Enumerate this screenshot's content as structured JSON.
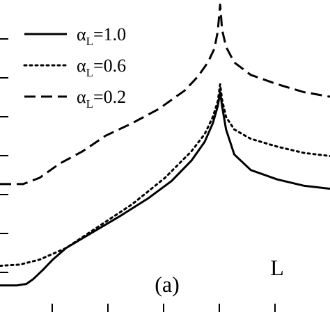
{
  "chart_data": {
    "type": "line",
    "title": "",
    "xlabel": "",
    "ylabel": "",
    "xlim": [
      0,
      1
    ],
    "ylim": [
      0,
      1
    ],
    "grid": false,
    "legend": "top-left",
    "panel_label": "(a)",
    "region_label": "L",
    "series": [
      {
        "name": "α_L=1.0",
        "legend_main": "α",
        "legend_sub": "L",
        "legend_value": "=1.0",
        "style": "solid",
        "x": [
          0.0,
          0.05,
          0.08,
          0.1,
          0.13,
          0.16,
          0.2,
          0.28,
          0.36,
          0.45,
          0.52,
          0.58,
          0.62,
          0.645,
          0.66,
          0.667,
          0.673,
          0.685,
          0.71,
          0.76,
          0.84,
          0.92,
          1.0
        ],
        "y": [
          0.085,
          0.085,
          0.09,
          0.105,
          0.135,
          0.168,
          0.205,
          0.255,
          0.305,
          0.365,
          0.42,
          0.485,
          0.545,
          0.605,
          0.66,
          0.705,
          0.66,
          0.585,
          0.505,
          0.455,
          0.425,
          0.405,
          0.395
        ]
      },
      {
        "name": "α_L=0.6",
        "legend_main": "α",
        "legend_sub": "L",
        "legend_value": "=0.6",
        "style": "dotted",
        "x": [
          0.0,
          0.06,
          0.12,
          0.2,
          0.3,
          0.4,
          0.5,
          0.58,
          0.62,
          0.645,
          0.66,
          0.667,
          0.673,
          0.685,
          0.71,
          0.76,
          0.84,
          0.92,
          1.0
        ],
        "y": [
          0.148,
          0.152,
          0.168,
          0.205,
          0.275,
          0.345,
          0.43,
          0.515,
          0.57,
          0.625,
          0.675,
          0.73,
          0.68,
          0.625,
          0.585,
          0.555,
          0.53,
          0.51,
          0.5
        ]
      },
      {
        "name": "α_L=0.2",
        "legend_main": "α",
        "legend_sub": "L",
        "legend_value": "=0.2",
        "style": "dashed",
        "x": [
          0.0,
          0.07,
          0.12,
          0.18,
          0.25,
          0.32,
          0.4,
          0.48,
          0.56,
          0.6,
          0.63,
          0.65,
          0.66,
          0.667,
          0.673,
          0.685,
          0.71,
          0.76,
          0.84,
          0.92,
          1.0
        ],
        "y": [
          0.41,
          0.41,
          0.43,
          0.475,
          0.515,
          0.565,
          0.605,
          0.65,
          0.71,
          0.755,
          0.8,
          0.845,
          0.9,
          0.985,
          0.905,
          0.85,
          0.8,
          0.76,
          0.73,
          0.705,
          0.69
        ]
      }
    ]
  }
}
